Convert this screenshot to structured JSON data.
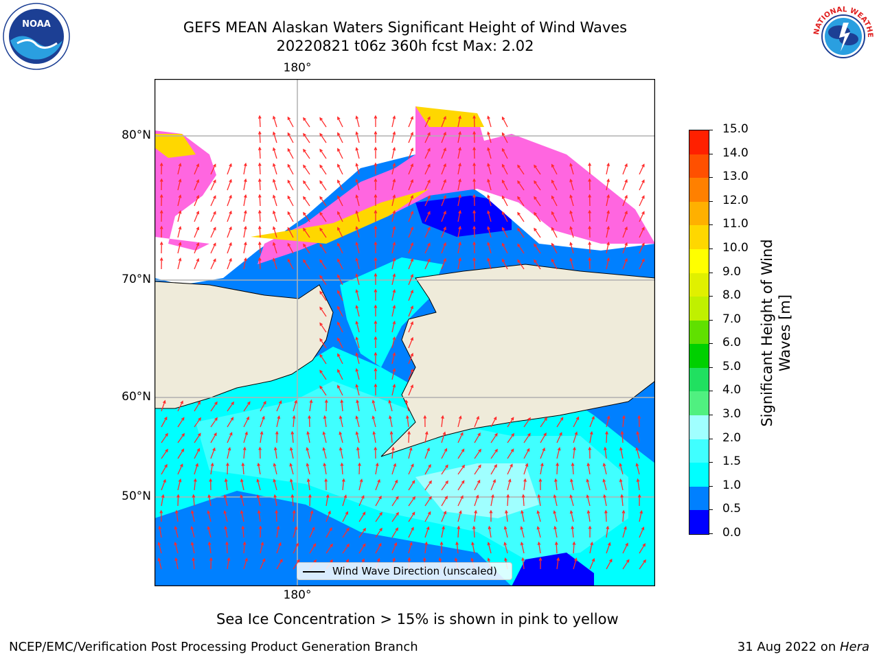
{
  "title": {
    "line1": "GEFS MEAN Alaskan Waters Significant Height of Wind Waves",
    "line2": "20220821 t06z 360h fcst   Max: 2.02"
  },
  "map": {
    "lon_label_top": "180°",
    "lon_label_bottom": "180°",
    "lat_labels": [
      "80°N",
      "70°N",
      "60°N",
      "50°N"
    ],
    "legend_label": "Wind Wave Direction (unscaled)",
    "colors": {
      "land": "#efebda",
      "sea_ice_pink": "#ff66e0",
      "sea_ice_yellow": "#ffd700",
      "vector": "#ff2a2a"
    }
  },
  "colorbar": {
    "label": "Significant Height of Wind Waves [m]",
    "label_line1": "Significant Height of Wind",
    "label_line2": "Waves [m]",
    "ticks": [
      "0.0",
      "0.5",
      "1.0",
      "1.5",
      "2.0",
      "3.0",
      "4.0",
      "5.0",
      "6.0",
      "7.0",
      "8.0",
      "9.0",
      "10.0",
      "11.0",
      "12.0",
      "13.0",
      "14.0",
      "15.0"
    ],
    "colors": [
      "#0000ff",
      "#0080ff",
      "#00ffff",
      "#40ffff",
      "#a0ffff",
      "#50f080",
      "#20e060",
      "#00d000",
      "#60e000",
      "#c0f000",
      "#e0f000",
      "#ffff00",
      "#ffd700",
      "#ffb000",
      "#ff8000",
      "#ff5000",
      "#ff2000",
      "#ff0000"
    ]
  },
  "footer": {
    "note": "Sea Ice Concentration > 15% is shown in pink to yellow",
    "left": "NCEP/EMC/Verification Post Processing Product Generation Branch",
    "right_date": "31 Aug 2022 on ",
    "right_host": "Hera"
  },
  "logos": {
    "noaa_text": "NOAA",
    "nws_text": "NATIONAL WEATHER SERVICE"
  }
}
